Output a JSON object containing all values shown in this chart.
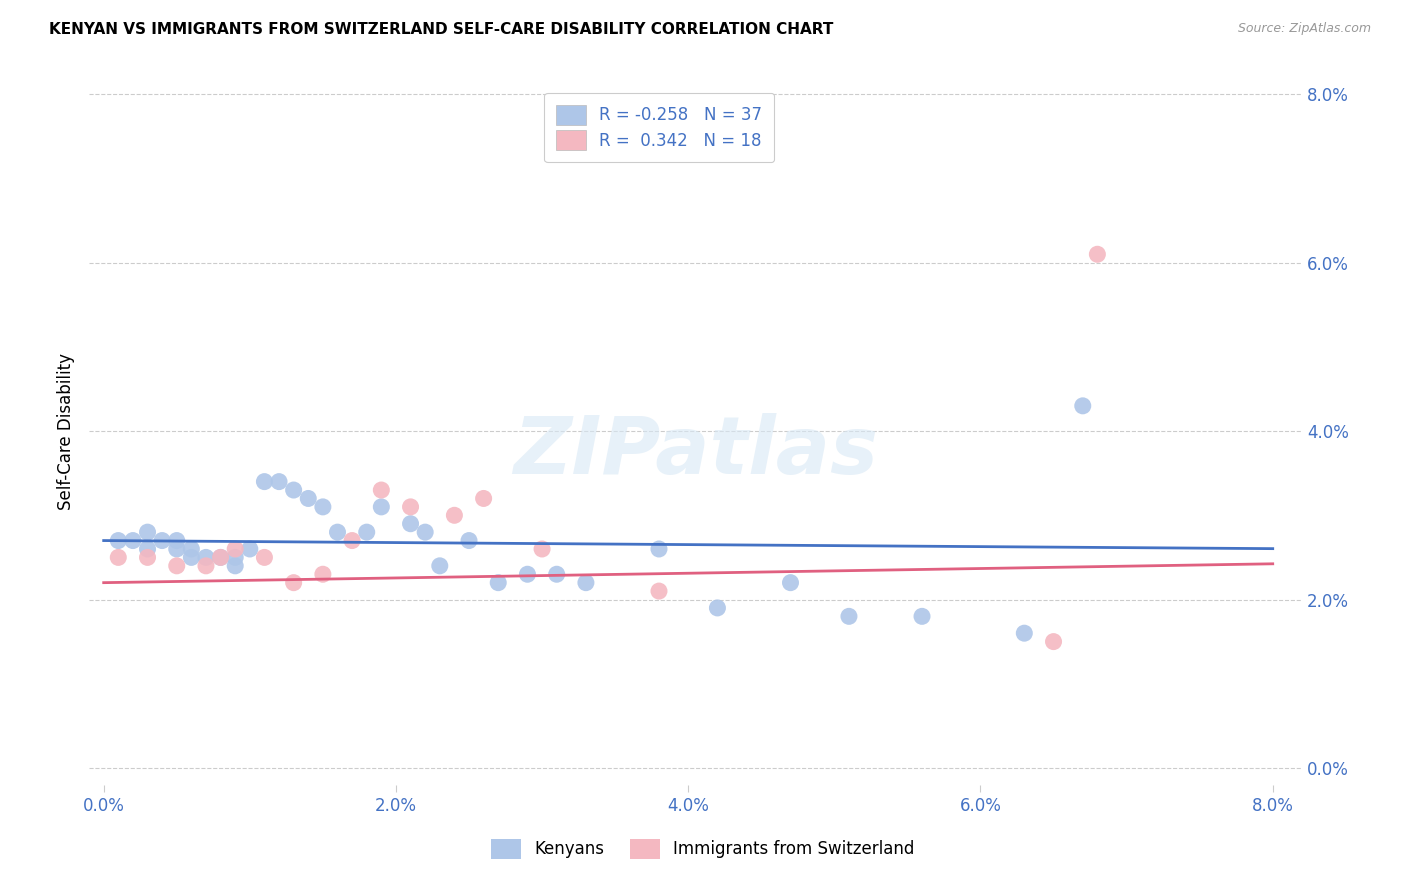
{
  "title": "KENYAN VS IMMIGRANTS FROM SWITZERLAND SELF-CARE DISABILITY CORRELATION CHART",
  "source": "Source: ZipAtlas.com",
  "xlabel_vals": [
    0.0,
    0.02,
    0.04,
    0.06,
    0.08
  ],
  "ylabel_vals": [
    0.0,
    0.02,
    0.04,
    0.06,
    0.08
  ],
  "xlim": [
    -0.001,
    0.082
  ],
  "ylim": [
    -0.002,
    0.082
  ],
  "ylabel": "Self-Care Disability",
  "legend_labels": [
    "Kenyans",
    "Immigrants from Switzerland"
  ],
  "legend_R_blue": "R = -0.258",
  "legend_N_blue": "N = 37",
  "legend_R_pink": "R =  0.342",
  "legend_N_pink": "N = 18",
  "blue_color": "#aec6e8",
  "pink_color": "#f4b8c1",
  "blue_line_color": "#4472c4",
  "pink_line_color": "#e06080",
  "axis_text_color": "#4472c4",
  "watermark": "ZIPatlas",
  "kenyans_x": [
    0.001,
    0.002,
    0.003,
    0.003,
    0.004,
    0.005,
    0.005,
    0.006,
    0.006,
    0.007,
    0.008,
    0.009,
    0.009,
    0.01,
    0.011,
    0.012,
    0.013,
    0.014,
    0.015,
    0.016,
    0.018,
    0.019,
    0.021,
    0.022,
    0.023,
    0.025,
    0.027,
    0.029,
    0.031,
    0.033,
    0.038,
    0.042,
    0.047,
    0.051,
    0.056,
    0.063,
    0.067
  ],
  "kenyans_y": [
    0.027,
    0.027,
    0.026,
    0.028,
    0.027,
    0.026,
    0.027,
    0.025,
    0.026,
    0.025,
    0.025,
    0.025,
    0.024,
    0.026,
    0.034,
    0.034,
    0.033,
    0.032,
    0.031,
    0.028,
    0.028,
    0.031,
    0.029,
    0.028,
    0.024,
    0.027,
    0.022,
    0.023,
    0.023,
    0.022,
    0.026,
    0.019,
    0.022,
    0.018,
    0.018,
    0.016,
    0.043
  ],
  "swiss_x": [
    0.001,
    0.003,
    0.005,
    0.007,
    0.008,
    0.009,
    0.011,
    0.013,
    0.015,
    0.017,
    0.019,
    0.021,
    0.024,
    0.026,
    0.03,
    0.038,
    0.065,
    0.068
  ],
  "swiss_y": [
    0.025,
    0.025,
    0.024,
    0.024,
    0.025,
    0.026,
    0.025,
    0.022,
    0.023,
    0.027,
    0.033,
    0.031,
    0.03,
    0.032,
    0.026,
    0.021,
    0.015,
    0.061
  ],
  "blue_intercept": 0.027,
  "blue_slope": -0.012,
  "pink_intercept": 0.022,
  "pink_slope": 0.028
}
